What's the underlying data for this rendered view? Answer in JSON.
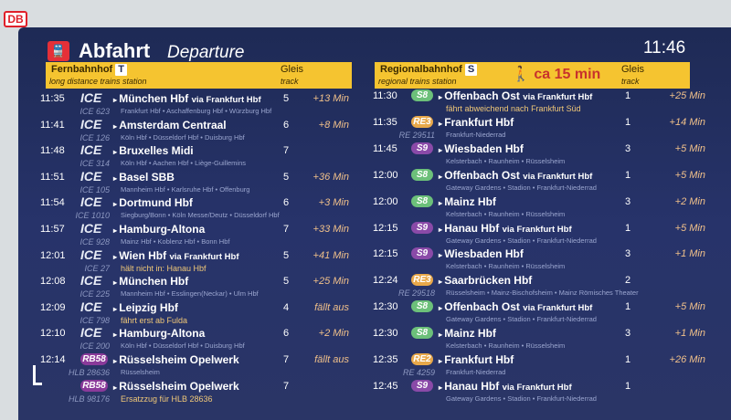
{
  "logo": "DB",
  "header": {
    "title": "Abfahrt",
    "title_en": "Departure",
    "clock": "11:46"
  },
  "left_header": {
    "name": "Fernbahnhof",
    "tag": "T",
    "sub": "long distance trains station",
    "gleis": "Gleis",
    "track": "track"
  },
  "right_header": {
    "name": "Regionalbahnhof",
    "tag": "S",
    "sub": "regional trains station",
    "walk": "ca 15 min",
    "gleis": "Gleis",
    "track": "track"
  },
  "left_rows": [
    {
      "time": "11:35",
      "line": "ICE",
      "num": "ICE 623",
      "dest": "München Hbf",
      "via_bold": "via Frankfurt Hbf",
      "via": "Frankfurt Hbf • Aschaffenburg Hbf • Würzburg Hbf",
      "track": "5",
      "delay": "+13 Min"
    },
    {
      "time": "11:41",
      "line": "ICE",
      "num": "ICE 126",
      "dest": "Amsterdam Centraal",
      "via_bold": "",
      "via": "Köln Hbf • Düsseldorf Hbf • Duisburg Hbf",
      "track": "6",
      "delay": "+8 Min"
    },
    {
      "time": "11:48",
      "line": "ICE",
      "num": "ICE 314",
      "dest": "Bruxelles Midi",
      "via_bold": "",
      "via": "Köln Hbf • Aachen Hbf • Liège-Guillemins",
      "track": "7",
      "delay": ""
    },
    {
      "time": "11:51",
      "line": "ICE",
      "num": "ICE 105",
      "dest": "Basel SBB",
      "via_bold": "",
      "via": "Mannheim Hbf • Karlsruhe Hbf • Offenburg",
      "track": "5",
      "delay": "+36 Min"
    },
    {
      "time": "11:54",
      "line": "ICE",
      "num": "ICE 1010",
      "dest": "Dortmund Hbf",
      "via_bold": "",
      "via": "Siegburg/Bonn • Köln Messe/Deutz • Düsseldorf Hbf",
      "track": "6",
      "delay": "+3 Min"
    },
    {
      "time": "11:57",
      "line": "ICE",
      "num": "ICE 928",
      "dest": "Hamburg-Altona",
      "via_bold": "",
      "via": "Mainz Hbf • Koblenz Hbf • Bonn Hbf",
      "track": "7",
      "delay": "+33 Min"
    },
    {
      "time": "12:01",
      "line": "ICE",
      "num": "ICE 27",
      "dest": "Wien Hbf",
      "via_bold": "via Frankfurt Hbf",
      "note": "hält nicht in: Hanau Hbf",
      "track": "5",
      "delay": "+41 Min"
    },
    {
      "time": "12:08",
      "line": "ICE",
      "num": "ICE 225",
      "dest": "München Hbf",
      "via_bold": "",
      "via": "Mannheim Hbf • Esslingen(Neckar) • Ulm Hbf",
      "track": "5",
      "delay": "+25 Min"
    },
    {
      "time": "12:09",
      "line": "ICE",
      "num": "ICE 798",
      "dest": "Leipzig Hbf",
      "via_bold": "",
      "note": "fährt erst ab Fulda",
      "track": "4",
      "delay": "fällt aus"
    },
    {
      "time": "12:10",
      "line": "ICE",
      "num": "ICE 200",
      "dest": "Hamburg-Altona",
      "via_bold": "",
      "via": "Köln Hbf • Düsseldorf Hbf • Duisburg Hbf",
      "track": "6",
      "delay": "+2 Min"
    },
    {
      "time": "12:14",
      "line": "RB58",
      "num": "HLB 28636",
      "dest": "Rüsselsheim Opelwerk",
      "via_bold": "",
      "via": "Rüsselsheim",
      "track": "7",
      "delay": "fällt aus"
    },
    {
      "time": "",
      "line": "RB58",
      "num": "HLB 98176",
      "dest": "Rüsselsheim Opelwerk",
      "via_bold": "",
      "note": "Ersatzzug für HLB 28636",
      "track": "7",
      "delay": ""
    }
  ],
  "right_rows": [
    {
      "time": "11:30",
      "line": "S8",
      "num": "",
      "dest": "Offenbach Ost",
      "via_bold": "via Frankfurt Hbf",
      "note": "fährt abweichend nach Frankfurt Süd",
      "track": "1",
      "delay": "+25 Min"
    },
    {
      "time": "11:35",
      "line": "RE3",
      "num": "RE 29511",
      "dest": "Frankfurt Hbf",
      "via_bold": "",
      "via": "Frankfurt-Niederrad",
      "track": "1",
      "delay": "+14 Min"
    },
    {
      "time": "11:45",
      "line": "S9",
      "num": "",
      "dest": "Wiesbaden Hbf",
      "via_bold": "",
      "via": "Kelsterbach • Raunheim • Rüsselsheim",
      "track": "3",
      "delay": "+5 Min"
    },
    {
      "time": "12:00",
      "line": "S8",
      "num": "",
      "dest": "Offenbach Ost",
      "via_bold": "via Frankfurt Hbf",
      "via": "Gateway Gardens • Stadion • Frankfurt-Niederrad",
      "track": "1",
      "delay": "+5 Min"
    },
    {
      "time": "12:00",
      "line": "S8",
      "num": "",
      "dest": "Mainz Hbf",
      "via_bold": "",
      "via": "Kelsterbach • Raunheim • Rüsselsheim",
      "track": "3",
      "delay": "+2 Min"
    },
    {
      "time": "12:15",
      "line": "S9",
      "num": "",
      "dest": "Hanau Hbf",
      "via_bold": "via Frankfurt Hbf",
      "via": "Gateway Gardens • Stadion • Frankfurt-Niederrad",
      "track": "1",
      "delay": "+5 Min"
    },
    {
      "time": "12:15",
      "line": "S9",
      "num": "",
      "dest": "Wiesbaden Hbf",
      "via_bold": "",
      "via": "Kelsterbach • Raunheim • Rüsselsheim",
      "track": "3",
      "delay": "+1 Min"
    },
    {
      "time": "12:24",
      "line": "RE3",
      "num": "RE 29518",
      "dest": "Saarbrücken Hbf",
      "via_bold": "",
      "via": "Rüsselsheim • Mainz-Bischofsheim • Mainz Römisches Theater",
      "track": "2",
      "delay": ""
    },
    {
      "time": "12:30",
      "line": "S8",
      "num": "",
      "dest": "Offenbach Ost",
      "via_bold": "via Frankfurt Hbf",
      "via": "Gateway Gardens • Stadion • Frankfurt-Niederrad",
      "track": "1",
      "delay": "+5 Min"
    },
    {
      "time": "12:30",
      "line": "S8",
      "num": "",
      "dest": "Mainz Hbf",
      "via_bold": "",
      "via": "Kelsterbach • Raunheim • Rüsselsheim",
      "track": "3",
      "delay": "+1 Min"
    },
    {
      "time": "12:35",
      "line": "RE2",
      "num": "RE 4259",
      "dest": "Frankfurt Hbf",
      "via_bold": "",
      "via": "Frankfurt-Niederrad",
      "track": "1",
      "delay": "+26 Min"
    },
    {
      "time": "12:45",
      "line": "S9",
      "num": "",
      "dest": "Hanau Hbf",
      "via_bold": "via Frankfurt Hbf",
      "via": "Gateway Gardens • Stadion • Frankfurt-Niederrad",
      "track": "1",
      "delay": ""
    }
  ],
  "colors": {
    "S8": "#6cc07a",
    "S9": "#8a4aa8",
    "RE3": "#e8a84a",
    "RE2": "#e8a84a",
    "RB58": "#8a3a9a",
    "header": "#f5c430",
    "board": "#27336a"
  }
}
